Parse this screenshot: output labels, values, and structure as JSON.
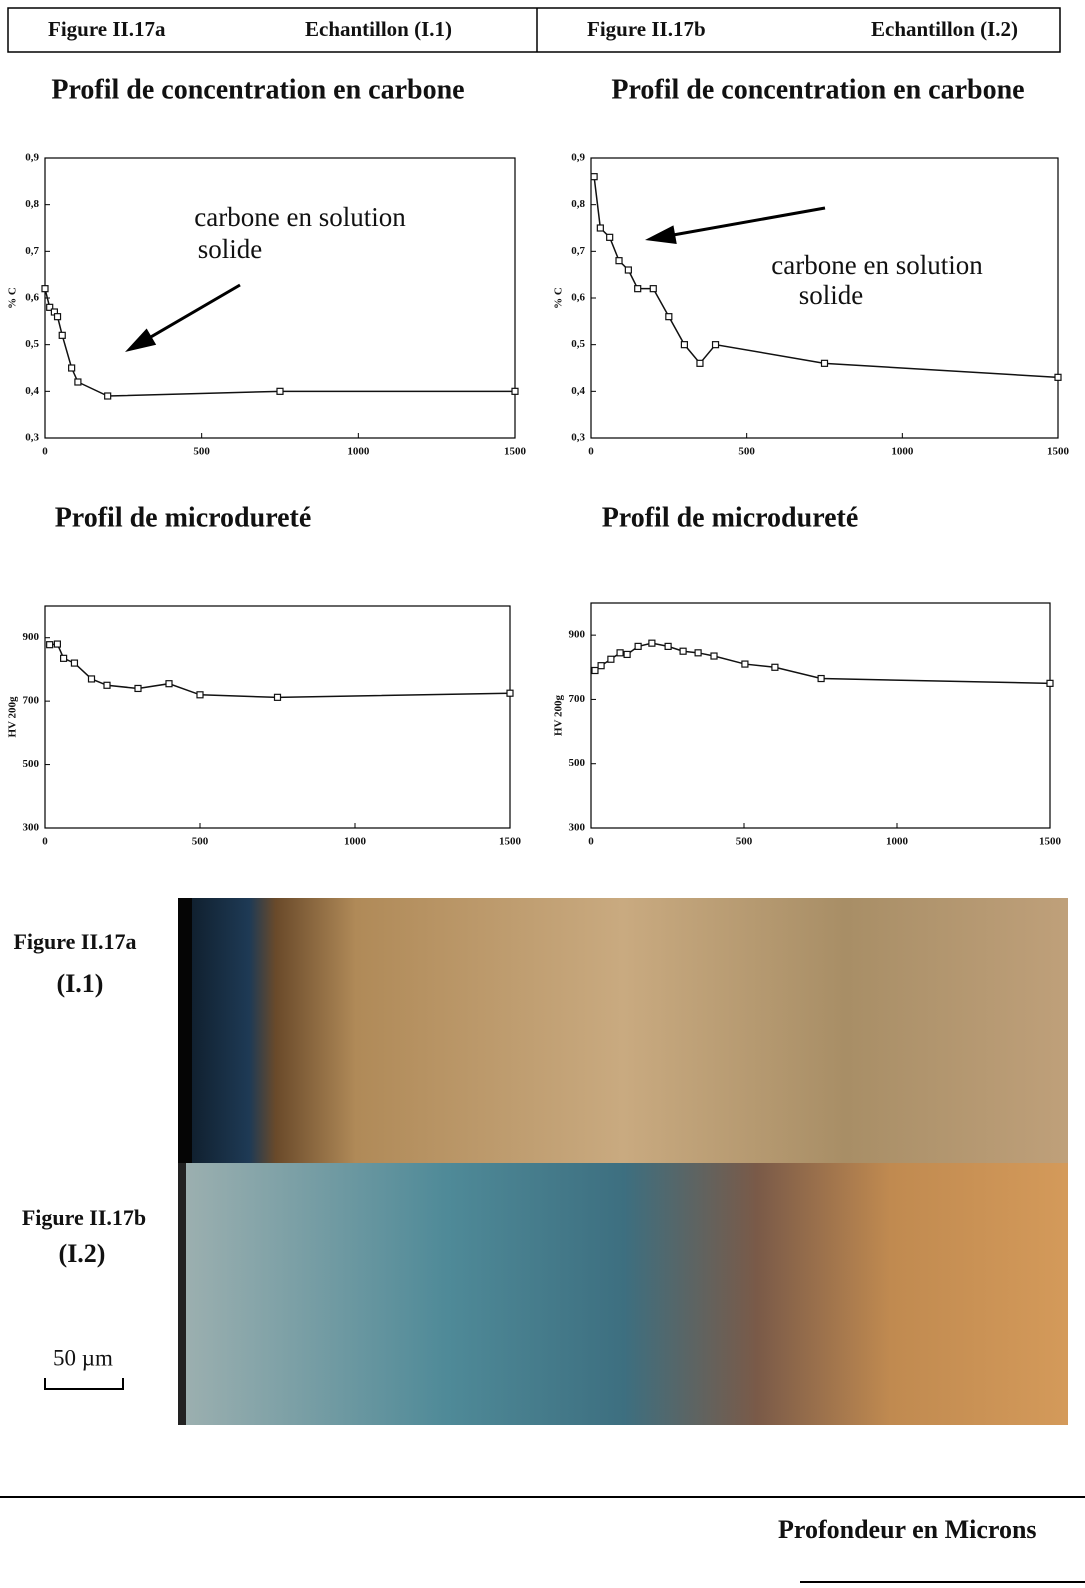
{
  "header": {
    "cells": [
      "Figure II.17a",
      "Echantillon (I.1)",
      "Figure II.17b",
      "Echantillon (I.2)"
    ]
  },
  "chart_data": [
    {
      "type": "line",
      "title": "Profil de concentration en carbone",
      "ylabel": "% C",
      "annotation": [
        "carbone en solution",
        "solide"
      ],
      "x": [
        0,
        15,
        30,
        40,
        55,
        85,
        105,
        200,
        750,
        1500
      ],
      "values": [
        0.62,
        0.58,
        0.57,
        0.56,
        0.52,
        0.45,
        0.42,
        0.39,
        0.4,
        0.4
      ],
      "xlim": [
        0,
        1500
      ],
      "ylim": [
        0.3,
        0.9
      ],
      "xticks": [
        0,
        500,
        1000,
        1500
      ],
      "yticks": [
        {
          "value": 0.3,
          "label": "0,3"
        },
        {
          "value": 0.4,
          "label": "0,4"
        },
        {
          "value": 0.5,
          "label": "0,5"
        },
        {
          "value": 0.6,
          "label": "0,6"
        },
        {
          "value": 0.7,
          "label": "0,7"
        },
        {
          "value": 0.8,
          "label": "0,8"
        },
        {
          "value": 0.9,
          "label": "0,9"
        }
      ],
      "color": "#111"
    },
    {
      "type": "line",
      "title": "Profil de concentration en carbone",
      "ylabel": "% C",
      "annotation": [
        "carbone en solution",
        "solide"
      ],
      "x": [
        10,
        30,
        60,
        90,
        120,
        150,
        200,
        250,
        300,
        350,
        400,
        750,
        1500
      ],
      "values": [
        0.86,
        0.75,
        0.73,
        0.68,
        0.66,
        0.62,
        0.62,
        0.56,
        0.5,
        0.46,
        0.5,
        0.46,
        0.43
      ],
      "xlim": [
        0,
        1500
      ],
      "ylim": [
        0.3,
        0.9
      ],
      "xticks": [
        0,
        500,
        1000,
        1500
      ],
      "yticks": [
        {
          "value": 0.3,
          "label": "0,3"
        },
        {
          "value": 0.4,
          "label": "0,4"
        },
        {
          "value": 0.5,
          "label": "0,5"
        },
        {
          "value": 0.6,
          "label": "0,6"
        },
        {
          "value": 0.7,
          "label": "0,7"
        },
        {
          "value": 0.8,
          "label": "0,8"
        },
        {
          "value": 0.9,
          "label": "0,9"
        }
      ],
      "color": "#111"
    },
    {
      "type": "line",
      "title": "Profil de microdureté",
      "ylabel": "HV 200g",
      "x": [
        15,
        40,
        60,
        95,
        150,
        200,
        300,
        400,
        500,
        750,
        1500
      ],
      "values": [
        878,
        880,
        835,
        820,
        770,
        750,
        740,
        755,
        720,
        712,
        725
      ],
      "xlim": [
        0,
        1500
      ],
      "ylim": [
        300,
        1000
      ],
      "xticks": [
        0,
        500,
        1000,
        1500
      ],
      "yticks": [
        300,
        500,
        700,
        900
      ],
      "color": "#111"
    },
    {
      "type": "line",
      "title": "Profil de microdureté",
      "ylabel": "HV 200g",
      "x": [
        13,
        33,
        65,
        95,
        118,
        154,
        199,
        252,
        301,
        350,
        402,
        503,
        601,
        752,
        1500
      ],
      "values": [
        790,
        805,
        825,
        845,
        840,
        865,
        875,
        865,
        850,
        845,
        835,
        810,
        800,
        765,
        750
      ],
      "xlim": [
        0,
        1500
      ],
      "ylim": [
        300,
        1000
      ],
      "xticks": [
        0,
        500,
        1000,
        1500
      ],
      "yticks": [
        300,
        500,
        700,
        900
      ],
      "color": "#111"
    }
  ],
  "micrographs": [
    {
      "figure": "Figure II.17a",
      "sample": "(I.1)"
    },
    {
      "figure": "Figure II.17b",
      "sample": "(I.2)"
    }
  ],
  "scale_bar": "50 µm",
  "x_axis_label": "Profondeur en Microns"
}
